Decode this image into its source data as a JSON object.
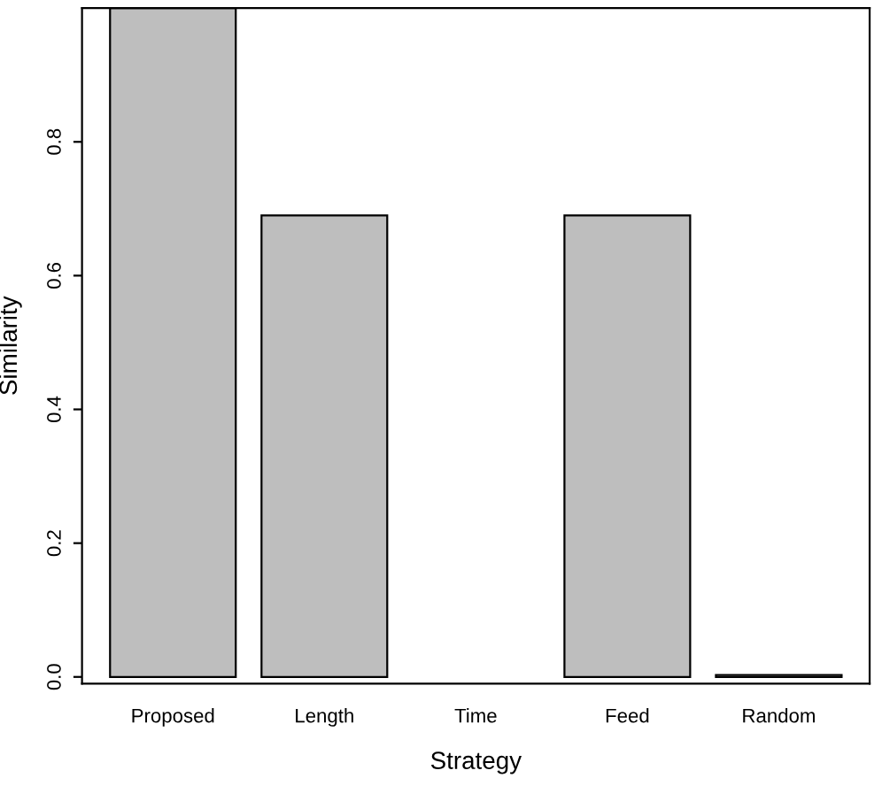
{
  "chart_data": {
    "type": "bar",
    "xlabel": "Strategy",
    "ylabel": "Similarity",
    "categories": [
      "Proposed",
      "Length",
      "Time",
      "Feed",
      "Random"
    ],
    "values": [
      1.0,
      0.69,
      0,
      0.69,
      0.003
    ],
    "color": "#bebebe",
    "ylim": [
      -0.01,
      1.0
    ],
    "yticks": [
      {
        "value": 0,
        "label": "0.0"
      },
      0.2,
      0.4,
      0.6,
      0.8
    ],
    "grid": false
  }
}
